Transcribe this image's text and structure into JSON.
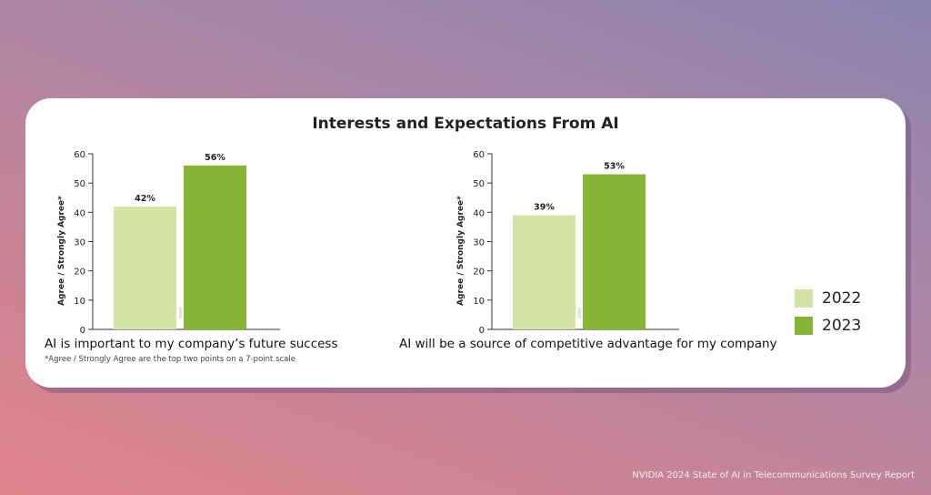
{
  "title": "Interests and Expectations From AI",
  "footnote": "*Agree / Strongly Agree are the top two points on a 7-point scale",
  "source": "NVIDIA 2024 State of AI in Telecommunications Survey Report",
  "watermark": "NVIDIA",
  "legend": [
    {
      "label": "2022",
      "color": "#d4e4a6"
    },
    {
      "label": "2023",
      "color": "#86b535"
    }
  ],
  "chart_data": [
    {
      "type": "bar",
      "caption": "AI is important to my company’s future success",
      "ylabel": "Agree / Strongly Agree*",
      "ylim": [
        0,
        60
      ],
      "yticks": [
        0,
        10,
        20,
        30,
        40,
        50,
        60
      ],
      "series": [
        {
          "name": "2022",
          "values": [
            42
          ],
          "labels": [
            "42%"
          ]
        },
        {
          "name": "2023",
          "values": [
            56
          ],
          "labels": [
            "56%"
          ]
        }
      ]
    },
    {
      "type": "bar",
      "caption": "AI will be a source of competitive advantage for my company",
      "ylabel": "Agree / Strongly Agree*",
      "ylim": [
        0,
        60
      ],
      "yticks": [
        0,
        10,
        20,
        30,
        40,
        50,
        60
      ],
      "series": [
        {
          "name": "2022",
          "values": [
            39
          ],
          "labels": [
            "39%"
          ]
        },
        {
          "name": "2023",
          "values": [
            53
          ],
          "labels": [
            "53%"
          ]
        }
      ]
    }
  ]
}
